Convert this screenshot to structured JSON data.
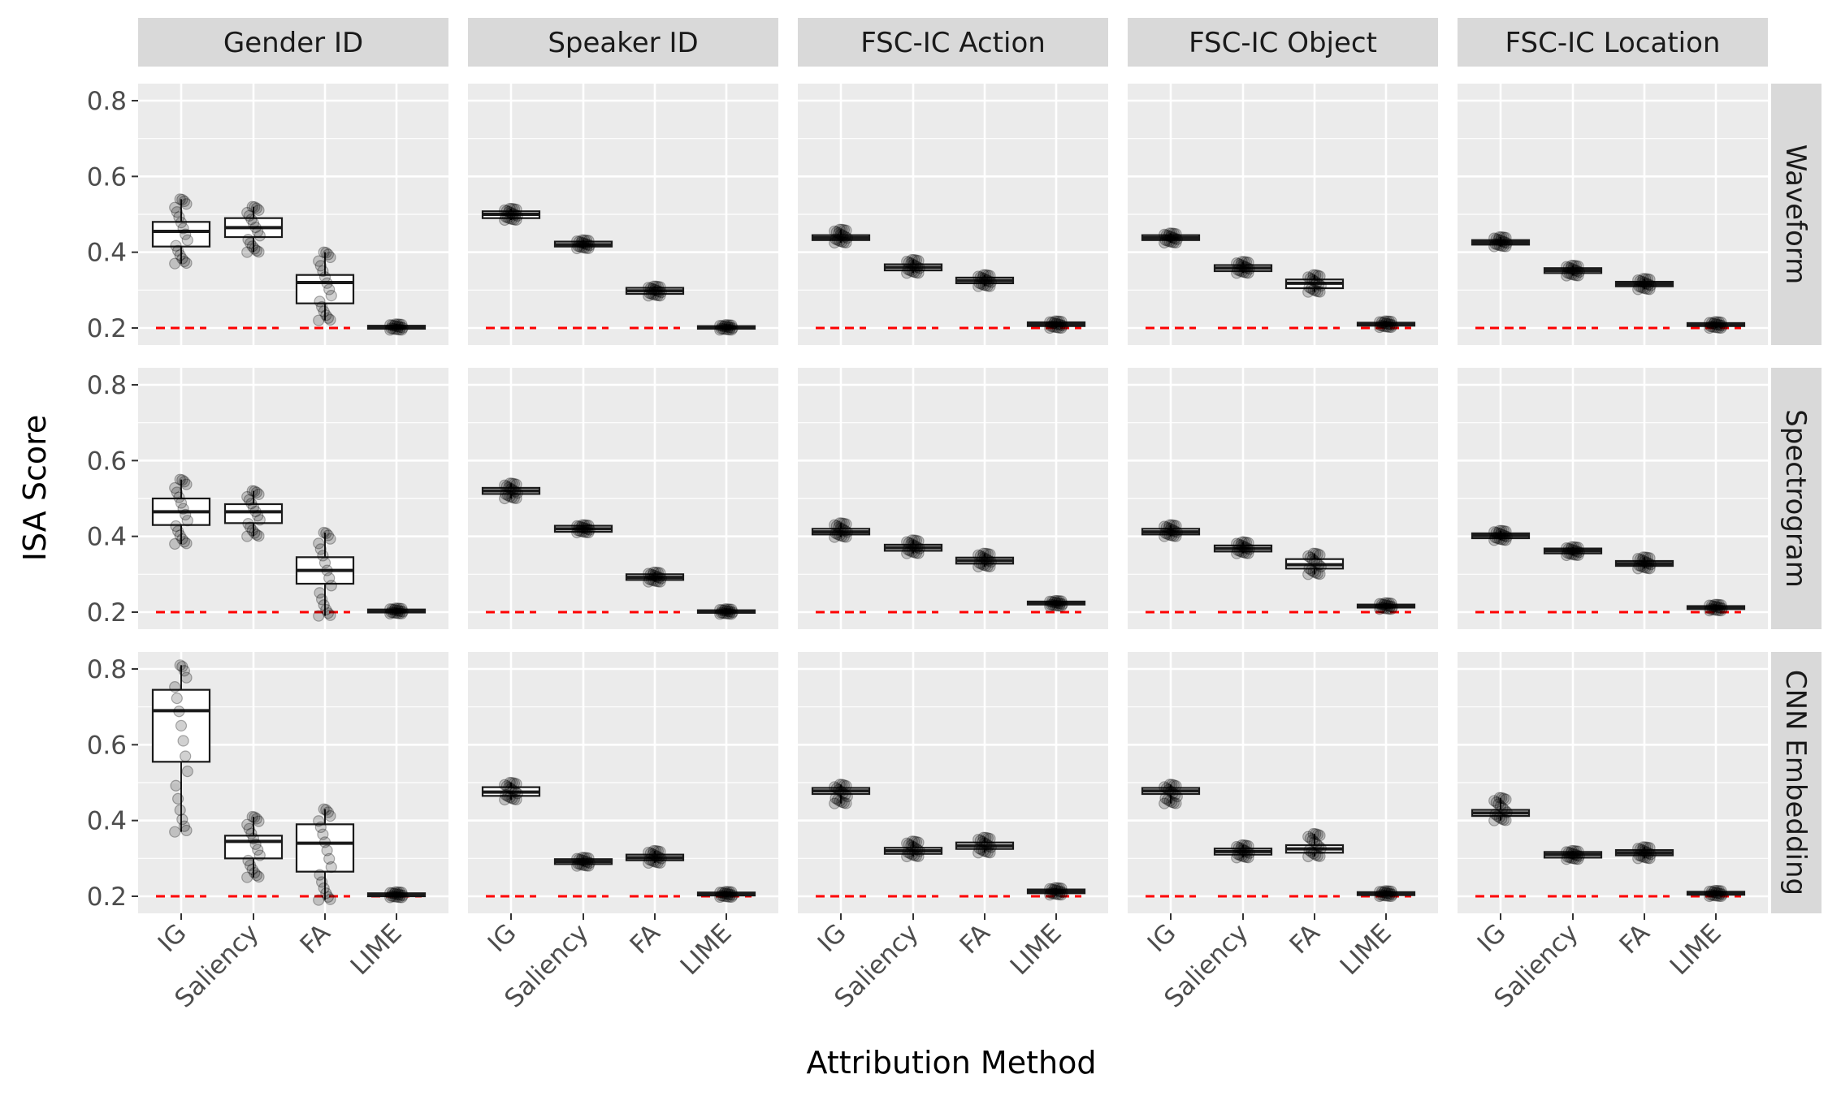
{
  "chart_data": {
    "type": "boxplot",
    "xlabel": "Attribution Method",
    "ylabel": "ISA Score",
    "ylim": [
      0.155,
      0.845
    ],
    "yticks": [
      0.2,
      0.4,
      0.6,
      0.8
    ],
    "ytick_labels": [
      "0.2",
      "0.4",
      "0.6",
      "0.8"
    ],
    "baseline": 0.2,
    "baseline_color": "#ff0000",
    "categories": [
      "IG",
      "Saliency",
      "FA",
      "LIME"
    ],
    "columns": [
      "Gender ID",
      "Speaker ID",
      "FSC-IC Action",
      "FSC-IC Object",
      "FSC-IC Location"
    ],
    "rows": [
      "Waveform",
      "Spectrogram",
      "CNN Embedding"
    ],
    "panels": [
      [
        [
          {
            "q1": 0.415,
            "median": 0.455,
            "q3": 0.48,
            "min": 0.37,
            "max": 0.54
          },
          {
            "q1": 0.44,
            "median": 0.465,
            "q3": 0.49,
            "min": 0.4,
            "max": 0.52
          },
          {
            "q1": 0.265,
            "median": 0.32,
            "q3": 0.34,
            "min": 0.22,
            "max": 0.4
          },
          {
            "q1": 0.198,
            "median": 0.202,
            "q3": 0.206,
            "min": 0.195,
            "max": 0.21
          }
        ],
        [
          {
            "q1": 0.49,
            "median": 0.5,
            "q3": 0.508,
            "min": 0.485,
            "max": 0.515
          },
          {
            "q1": 0.415,
            "median": 0.42,
            "q3": 0.428,
            "min": 0.41,
            "max": 0.432
          },
          {
            "q1": 0.29,
            "median": 0.298,
            "q3": 0.306,
            "min": 0.285,
            "max": 0.31
          },
          {
            "q1": 0.198,
            "median": 0.201,
            "q3": 0.205,
            "min": 0.195,
            "max": 0.208
          }
        ],
        [
          {
            "q1": 0.432,
            "median": 0.438,
            "q3": 0.445,
            "min": 0.425,
            "max": 0.46
          },
          {
            "q1": 0.352,
            "median": 0.36,
            "q3": 0.368,
            "min": 0.345,
            "max": 0.38
          },
          {
            "q1": 0.318,
            "median": 0.325,
            "q3": 0.333,
            "min": 0.31,
            "max": 0.34
          },
          {
            "q1": 0.205,
            "median": 0.21,
            "q3": 0.215,
            "min": 0.2,
            "max": 0.218
          }
        ],
        [
          {
            "q1": 0.432,
            "median": 0.438,
            "q3": 0.445,
            "min": 0.425,
            "max": 0.45
          },
          {
            "q1": 0.35,
            "median": 0.358,
            "q3": 0.366,
            "min": 0.345,
            "max": 0.375
          },
          {
            "q1": 0.305,
            "median": 0.318,
            "q3": 0.328,
            "min": 0.295,
            "max": 0.34
          },
          {
            "q1": 0.206,
            "median": 0.21,
            "q3": 0.214,
            "min": 0.202,
            "max": 0.218
          }
        ],
        [
          {
            "q1": 0.42,
            "median": 0.426,
            "q3": 0.432,
            "min": 0.415,
            "max": 0.44
          },
          {
            "q1": 0.345,
            "median": 0.352,
            "q3": 0.358,
            "min": 0.338,
            "max": 0.365
          },
          {
            "q1": 0.31,
            "median": 0.316,
            "q3": 0.322,
            "min": 0.302,
            "max": 0.33
          },
          {
            "q1": 0.205,
            "median": 0.209,
            "q3": 0.213,
            "min": 0.2,
            "max": 0.216
          }
        ]
      ],
      [
        [
          {
            "q1": 0.43,
            "median": 0.465,
            "q3": 0.5,
            "min": 0.38,
            "max": 0.55
          },
          {
            "q1": 0.435,
            "median": 0.465,
            "q3": 0.485,
            "min": 0.4,
            "max": 0.52
          },
          {
            "q1": 0.275,
            "median": 0.31,
            "q3": 0.345,
            "min": 0.19,
            "max": 0.41
          },
          {
            "q1": 0.199,
            "median": 0.203,
            "q3": 0.207,
            "min": 0.196,
            "max": 0.21
          }
        ],
        [
          {
            "q1": 0.512,
            "median": 0.52,
            "q3": 0.528,
            "min": 0.5,
            "max": 0.54
          },
          {
            "q1": 0.412,
            "median": 0.42,
            "q3": 0.428,
            "min": 0.41,
            "max": 0.43
          },
          {
            "q1": 0.285,
            "median": 0.292,
            "q3": 0.3,
            "min": 0.28,
            "max": 0.305
          },
          {
            "q1": 0.198,
            "median": 0.201,
            "q3": 0.205,
            "min": 0.195,
            "max": 0.208
          }
        ],
        [
          {
            "q1": 0.405,
            "median": 0.412,
            "q3": 0.42,
            "min": 0.398,
            "max": 0.435
          },
          {
            "q1": 0.362,
            "median": 0.37,
            "q3": 0.378,
            "min": 0.355,
            "max": 0.39
          },
          {
            "q1": 0.328,
            "median": 0.336,
            "q3": 0.344,
            "min": 0.32,
            "max": 0.355
          },
          {
            "q1": 0.22,
            "median": 0.224,
            "q3": 0.228,
            "min": 0.216,
            "max": 0.23
          }
        ],
        [
          {
            "q1": 0.405,
            "median": 0.412,
            "q3": 0.42,
            "min": 0.4,
            "max": 0.43
          },
          {
            "q1": 0.36,
            "median": 0.368,
            "q3": 0.376,
            "min": 0.355,
            "max": 0.385
          },
          {
            "q1": 0.315,
            "median": 0.325,
            "q3": 0.34,
            "min": 0.3,
            "max": 0.355
          },
          {
            "q1": 0.212,
            "median": 0.216,
            "q3": 0.22,
            "min": 0.208,
            "max": 0.224
          }
        ],
        [
          {
            "q1": 0.395,
            "median": 0.402,
            "q3": 0.408,
            "min": 0.39,
            "max": 0.415
          },
          {
            "q1": 0.355,
            "median": 0.362,
            "q3": 0.368,
            "min": 0.35,
            "max": 0.372
          },
          {
            "q1": 0.322,
            "median": 0.328,
            "q3": 0.335,
            "min": 0.315,
            "max": 0.345
          },
          {
            "q1": 0.208,
            "median": 0.212,
            "q3": 0.216,
            "min": 0.204,
            "max": 0.22
          }
        ]
      ],
      [
        [
          {
            "q1": 0.555,
            "median": 0.69,
            "q3": 0.745,
            "min": 0.37,
            "max": 0.81
          },
          {
            "q1": 0.3,
            "median": 0.345,
            "q3": 0.36,
            "min": 0.25,
            "max": 0.41
          },
          {
            "q1": 0.265,
            "median": 0.34,
            "q3": 0.39,
            "min": 0.19,
            "max": 0.43
          },
          {
            "q1": 0.2,
            "median": 0.204,
            "q3": 0.208,
            "min": 0.197,
            "max": 0.211
          }
        ],
        [
          {
            "q1": 0.465,
            "median": 0.475,
            "q3": 0.488,
            "min": 0.455,
            "max": 0.5
          },
          {
            "q1": 0.285,
            "median": 0.292,
            "q3": 0.298,
            "min": 0.28,
            "max": 0.302
          },
          {
            "q1": 0.295,
            "median": 0.302,
            "q3": 0.31,
            "min": 0.288,
            "max": 0.32
          },
          {
            "q1": 0.202,
            "median": 0.206,
            "q3": 0.21,
            "min": 0.198,
            "max": 0.212
          }
        ],
        [
          {
            "q1": 0.47,
            "median": 0.478,
            "q3": 0.486,
            "min": 0.445,
            "max": 0.495
          },
          {
            "q1": 0.312,
            "median": 0.32,
            "q3": 0.328,
            "min": 0.305,
            "max": 0.345
          },
          {
            "q1": 0.325,
            "median": 0.333,
            "q3": 0.342,
            "min": 0.315,
            "max": 0.355
          },
          {
            "q1": 0.208,
            "median": 0.213,
            "q3": 0.218,
            "min": 0.204,
            "max": 0.222
          }
        ],
        [
          {
            "q1": 0.47,
            "median": 0.478,
            "q3": 0.486,
            "min": 0.445,
            "max": 0.495
          },
          {
            "q1": 0.31,
            "median": 0.318,
            "q3": 0.326,
            "min": 0.302,
            "max": 0.335
          },
          {
            "q1": 0.315,
            "median": 0.325,
            "q3": 0.335,
            "min": 0.305,
            "max": 0.365
          },
          {
            "q1": 0.203,
            "median": 0.207,
            "q3": 0.211,
            "min": 0.2,
            "max": 0.214
          }
        ],
        [
          {
            "q1": 0.412,
            "median": 0.42,
            "q3": 0.428,
            "min": 0.4,
            "max": 0.46
          },
          {
            "q1": 0.302,
            "median": 0.31,
            "q3": 0.317,
            "min": 0.298,
            "max": 0.32
          },
          {
            "q1": 0.308,
            "median": 0.315,
            "q3": 0.322,
            "min": 0.3,
            "max": 0.33
          },
          {
            "q1": 0.204,
            "median": 0.208,
            "q3": 0.212,
            "min": 0.2,
            "max": 0.215
          }
        ]
      ]
    ]
  }
}
